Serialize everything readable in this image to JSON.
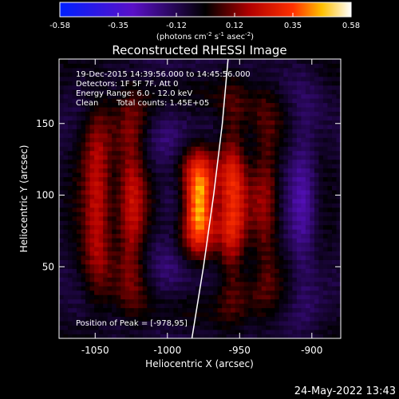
{
  "colorbar": {
    "ticks": [
      "-0.58",
      "-0.35",
      "-0.12",
      "0.12",
      "0.35",
      "0.58"
    ],
    "unit_main": "(photons cm",
    "unit_exp1": "-2",
    "unit_mid": " s",
    "unit_exp2": "-1",
    "unit_tail": " asec",
    "unit_exp3": "-2",
    "unit_close": ")"
  },
  "annotations": {
    "time_range": "19-Dec-2015 14:39:56.000 to 14:45:56.000",
    "detectors": "Detectors: 1F 5F 7F, Att 0",
    "energy": "Energy Range: 6.0 - 12.0 keV",
    "clean": "Clean",
    "counts": "Total counts: 1.45E+05",
    "peak": "Position of Peak = [-978,95]"
  },
  "footer": {
    "date": "24-May-2022 13:43"
  },
  "chart_data": {
    "type": "heatmap",
    "title": "Reconstructed RHESSI Image",
    "xlabel": "Heliocentric X (arcsec)",
    "ylabel": "Heliocentric Y (arcsec)",
    "xlim": [
      -1075,
      -880
    ],
    "ylim": [
      0,
      195
    ],
    "xticks": [
      -1050,
      -1000,
      -950,
      -900
    ],
    "yticks": [
      50,
      100,
      150
    ],
    "xtick_labels": [
      "-1050",
      "-1000",
      "-950",
      "-900"
    ],
    "ytick_labels": [
      "50",
      "100",
      "150"
    ],
    "color_range": [
      -0.58,
      0.58
    ],
    "colormap": "blue-purple-black-red-yellow-white",
    "peak": {
      "x": -978,
      "y": 95,
      "value": 0.58
    },
    "limb_curve": {
      "x": [
        -958,
        -962,
        -968,
        -975,
        -983
      ],
      "y": [
        195,
        150,
        100,
        50,
        0
      ]
    },
    "fringe_centers_x": [
      -1048,
      -1025,
      -1000,
      -978,
      -955,
      -932,
      -906
    ],
    "fringe_peak_values": [
      0.25,
      0.3,
      -0.1,
      0.58,
      0.3,
      0.22,
      -0.2
    ]
  }
}
